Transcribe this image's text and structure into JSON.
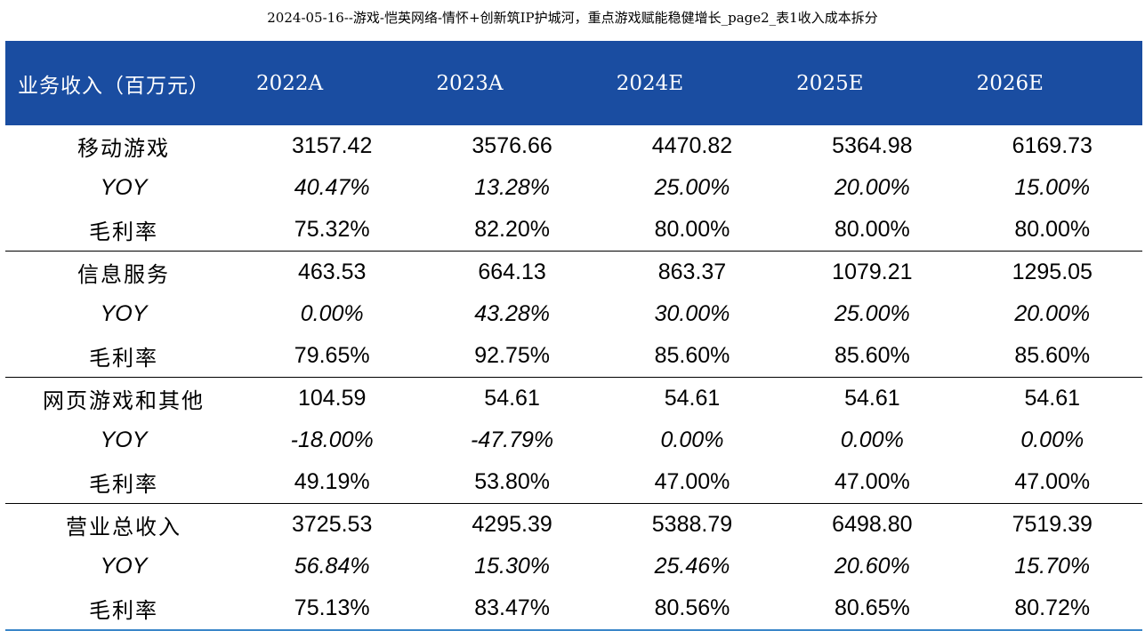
{
  "caption": "2024-05-16--游戏-恺英网络-情怀+创新筑IP护城河，重点游戏赋能稳健增长_page2_表1收入成本拆分",
  "table": {
    "headers": [
      "业务收入（百万元）",
      "2022A",
      "2023A",
      "2024E",
      "2025E",
      "2026E"
    ],
    "groups": [
      {
        "name": "移动游戏",
        "rows": [
          {
            "label": "移动游戏",
            "values": [
              "3157.42",
              "3576.66",
              "4470.82",
              "5364.98",
              "6169.73"
            ]
          },
          {
            "label": "YOY",
            "values": [
              "40.47%",
              "13.28%",
              "25.00%",
              "20.00%",
              "15.00%"
            ]
          },
          {
            "label": "毛利率",
            "values": [
              "75.32%",
              "82.20%",
              "80.00%",
              "80.00%",
              "80.00%"
            ]
          }
        ]
      },
      {
        "name": "信息服务",
        "rows": [
          {
            "label": "信息服务",
            "values": [
              "463.53",
              "664.13",
              "863.37",
              "1079.21",
              "1295.05"
            ]
          },
          {
            "label": "YOY",
            "values": [
              "0.00%",
              "43.28%",
              "30.00%",
              "25.00%",
              "20.00%"
            ]
          },
          {
            "label": "毛利率",
            "values": [
              "79.65%",
              "92.75%",
              "85.60%",
              "85.60%",
              "85.60%"
            ]
          }
        ]
      },
      {
        "name": "网页游戏和其他",
        "rows": [
          {
            "label": "网页游戏和其他",
            "values": [
              "104.59",
              "54.61",
              "54.61",
              "54.61",
              "54.61"
            ]
          },
          {
            "label": "YOY",
            "values": [
              "-18.00%",
              "-47.79%",
              "0.00%",
              "0.00%",
              "0.00%"
            ]
          },
          {
            "label": "毛利率",
            "values": [
              "49.19%",
              "53.80%",
              "47.00%",
              "47.00%",
              "47.00%"
            ]
          }
        ]
      },
      {
        "name": "营业总收入",
        "rows": [
          {
            "label": "营业总收入",
            "values": [
              "3725.53",
              "4295.39",
              "5388.79",
              "6498.80",
              "7519.39"
            ]
          },
          {
            "label": "YOY",
            "values": [
              "56.84%",
              "15.30%",
              "25.46%",
              "20.60%",
              "15.70%"
            ]
          },
          {
            "label": "毛利率",
            "values": [
              "75.13%",
              "83.47%",
              "80.56%",
              "80.65%",
              "80.72%"
            ]
          }
        ]
      }
    ]
  },
  "colors": {
    "header_background": "#1a4da1",
    "header_text": "#ffffff",
    "bottom_rule": "#3a86c8"
  }
}
